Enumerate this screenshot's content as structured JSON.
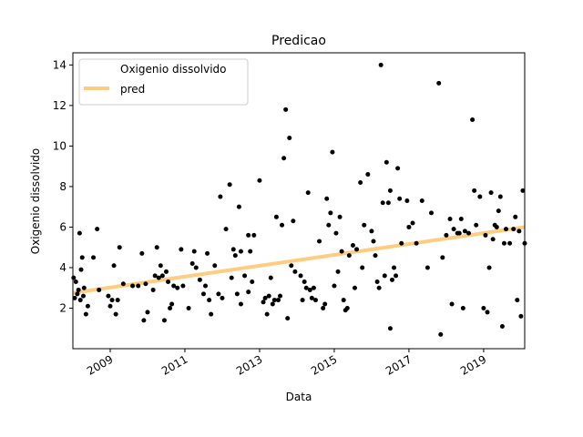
{
  "chart_data": {
    "type": "scatter",
    "title": "Predicao",
    "xlabel": "Data",
    "ylabel": "Oxigenio dissolvido",
    "xlim": [
      2008.0,
      2020.1
    ],
    "ylim": [
      0.0,
      14.6
    ],
    "x_ticks": [
      2009,
      2011,
      2013,
      2015,
      2017,
      2019
    ],
    "y_ticks": [
      2,
      4,
      6,
      8,
      10,
      12,
      14
    ],
    "grid": false,
    "legend_position": "top-left",
    "series": [
      {
        "name": "Oxigenio dissolvido",
        "kind": "scatter",
        "color": "#000000",
        "points": [
          [
            2008.02,
            3.5
          ],
          [
            2008.05,
            2.5
          ],
          [
            2008.08,
            3.3
          ],
          [
            2008.12,
            2.7
          ],
          [
            2008.15,
            2.9
          ],
          [
            2008.18,
            5.7
          ],
          [
            2008.22,
            3.9
          ],
          [
            2008.25,
            4.5
          ],
          [
            2008.3,
            3.0
          ],
          [
            2008.35,
            1.7
          ],
          [
            2008.4,
            2.1
          ],
          [
            2008.55,
            4.5
          ],
          [
            2008.65,
            5.9
          ],
          [
            2008.7,
            2.9
          ],
          [
            2008.2,
            2.4
          ],
          [
            2008.28,
            2.6
          ],
          [
            2008.95,
            2.6
          ],
          [
            2009.0,
            2.1
          ],
          [
            2009.1,
            4.1
          ],
          [
            2009.15,
            1.7
          ],
          [
            2009.2,
            2.4
          ],
          [
            2009.25,
            5.0
          ],
          [
            2009.35,
            3.2
          ],
          [
            2009.05,
            2.4
          ],
          [
            2009.6,
            3.1
          ],
          [
            2009.75,
            3.1
          ],
          [
            2009.85,
            4.7
          ],
          [
            2009.9,
            1.4
          ],
          [
            2009.95,
            3.2
          ],
          [
            2010.0,
            1.8
          ],
          [
            2010.15,
            2.9
          ],
          [
            2010.2,
            3.6
          ],
          [
            2010.25,
            5.0
          ],
          [
            2010.3,
            3.5
          ],
          [
            2010.4,
            3.6
          ],
          [
            2010.45,
            1.4
          ],
          [
            2010.5,
            3.8
          ],
          [
            2010.55,
            3.3
          ],
          [
            2010.6,
            2.0
          ],
          [
            2010.65,
            2.2
          ],
          [
            2010.7,
            3.1
          ],
          [
            2010.8,
            3.0
          ],
          [
            2010.9,
            4.9
          ],
          [
            2010.95,
            3.1
          ],
          [
            2010.35,
            4.1
          ],
          [
            2011.1,
            2.0
          ],
          [
            2011.2,
            4.2
          ],
          [
            2011.25,
            4.8
          ],
          [
            2011.3,
            4.0
          ],
          [
            2011.4,
            3.4
          ],
          [
            2011.5,
            2.7
          ],
          [
            2011.55,
            3.1
          ],
          [
            2011.6,
            4.7
          ],
          [
            2011.65,
            2.4
          ],
          [
            2011.7,
            1.7
          ],
          [
            2011.8,
            4.1
          ],
          [
            2011.9,
            2.7
          ],
          [
            2011.95,
            7.5
          ],
          [
            2012.0,
            2.5
          ],
          [
            2012.1,
            5.9
          ],
          [
            2012.2,
            8.1
          ],
          [
            2012.25,
            3.5
          ],
          [
            2012.3,
            4.9
          ],
          [
            2012.4,
            2.7
          ],
          [
            2012.45,
            7.0
          ],
          [
            2012.5,
            2.2
          ],
          [
            2012.6,
            3.6
          ],
          [
            2012.7,
            2.8
          ],
          [
            2012.75,
            4.8
          ],
          [
            2012.35,
            4.6
          ],
          [
            2012.5,
            4.8
          ],
          [
            2012.7,
            5.6
          ],
          [
            2012.8,
            3.3
          ],
          [
            2012.85,
            5.6
          ],
          [
            2013.0,
            8.3
          ],
          [
            2013.1,
            2.3
          ],
          [
            2013.15,
            2.5
          ],
          [
            2013.2,
            1.7
          ],
          [
            2013.25,
            2.6
          ],
          [
            2013.3,
            3.5
          ],
          [
            2013.35,
            2.2
          ],
          [
            2013.4,
            2.4
          ],
          [
            2013.45,
            6.5
          ],
          [
            2013.5,
            2.4
          ],
          [
            2013.55,
            2.6
          ],
          [
            2013.6,
            6.1
          ],
          [
            2013.65,
            9.4
          ],
          [
            2013.7,
            11.8
          ],
          [
            2013.75,
            1.5
          ],
          [
            2013.8,
            10.4
          ],
          [
            2013.85,
            4.1
          ],
          [
            2013.9,
            6.3
          ],
          [
            2013.95,
            3.8
          ],
          [
            2014.1,
            3.6
          ],
          [
            2014.15,
            2.4
          ],
          [
            2014.2,
            3.3
          ],
          [
            2014.25,
            3.0
          ],
          [
            2014.3,
            7.7
          ],
          [
            2014.35,
            2.9
          ],
          [
            2014.4,
            2.5
          ],
          [
            2014.45,
            3.0
          ],
          [
            2014.5,
            2.4
          ],
          [
            2014.6,
            5.3
          ],
          [
            2014.7,
            2.0
          ],
          [
            2014.75,
            2.2
          ],
          [
            2014.8,
            7.4
          ],
          [
            2014.85,
            6.1
          ],
          [
            2014.9,
            6.7
          ],
          [
            2014.95,
            9.7
          ],
          [
            2015.0,
            3.1
          ],
          [
            2015.05,
            5.7
          ],
          [
            2015.1,
            3.8
          ],
          [
            2015.15,
            6.5
          ],
          [
            2015.2,
            4.8
          ],
          [
            2015.25,
            2.4
          ],
          [
            2015.3,
            1.9
          ],
          [
            2015.35,
            2.0
          ],
          [
            2015.4,
            4.6
          ],
          [
            2015.5,
            5.1
          ],
          [
            2015.55,
            3.0
          ],
          [
            2015.6,
            4.9
          ],
          [
            2015.7,
            8.2
          ],
          [
            2015.75,
            4.0
          ],
          [
            2015.8,
            6.1
          ],
          [
            2015.9,
            8.6
          ],
          [
            2016.0,
            5.8
          ],
          [
            2016.05,
            5.3
          ],
          [
            2016.1,
            4.6
          ],
          [
            2016.15,
            3.3
          ],
          [
            2016.2,
            3.0
          ],
          [
            2016.25,
            14.0
          ],
          [
            2016.3,
            7.2
          ],
          [
            2016.35,
            3.6
          ],
          [
            2016.4,
            9.2
          ],
          [
            2016.45,
            7.2
          ],
          [
            2016.5,
            7.8
          ],
          [
            2016.55,
            3.4
          ],
          [
            2016.6,
            4.0
          ],
          [
            2016.65,
            3.6
          ],
          [
            2016.7,
            8.9
          ],
          [
            2016.75,
            7.4
          ],
          [
            2016.8,
            5.2
          ],
          [
            2016.5,
            1.0
          ],
          [
            2016.95,
            7.3
          ],
          [
            2017.0,
            6.0
          ],
          [
            2017.1,
            6.2
          ],
          [
            2017.2,
            5.2
          ],
          [
            2017.35,
            7.3
          ],
          [
            2017.5,
            4.0
          ],
          [
            2017.6,
            6.7
          ],
          [
            2017.8,
            13.1
          ],
          [
            2017.85,
            0.7
          ],
          [
            2017.9,
            4.5
          ],
          [
            2018.0,
            5.6
          ],
          [
            2018.1,
            6.4
          ],
          [
            2018.15,
            2.2
          ],
          [
            2018.2,
            5.9
          ],
          [
            2018.3,
            5.7
          ],
          [
            2018.35,
            5.7
          ],
          [
            2018.4,
            6.4
          ],
          [
            2018.45,
            2.0
          ],
          [
            2018.5,
            5.8
          ],
          [
            2018.6,
            5.7
          ],
          [
            2018.7,
            11.3
          ],
          [
            2018.75,
            7.8
          ],
          [
            2018.8,
            6.1
          ],
          [
            2018.9,
            7.5
          ],
          [
            2019.0,
            2.0
          ],
          [
            2019.05,
            5.6
          ],
          [
            2019.1,
            1.8
          ],
          [
            2019.15,
            4.0
          ],
          [
            2019.2,
            7.7
          ],
          [
            2019.25,
            5.4
          ],
          [
            2019.3,
            6.1
          ],
          [
            2019.35,
            6.0
          ],
          [
            2019.4,
            6.8
          ],
          [
            2019.45,
            7.5
          ],
          [
            2019.5,
            1.1
          ],
          [
            2019.55,
            5.2
          ],
          [
            2019.6,
            5.9
          ],
          [
            2019.7,
            5.2
          ],
          [
            2019.8,
            5.9
          ],
          [
            2019.85,
            6.5
          ],
          [
            2019.9,
            2.4
          ],
          [
            2019.95,
            5.8
          ],
          [
            2020.0,
            1.6
          ],
          [
            2020.05,
            7.8
          ],
          [
            2020.1,
            5.2
          ]
        ]
      },
      {
        "name": "pred",
        "kind": "line",
        "color": "#ffcc80",
        "points": [
          [
            2008.0,
            2.75
          ],
          [
            2020.1,
            6.0
          ]
        ]
      }
    ]
  }
}
